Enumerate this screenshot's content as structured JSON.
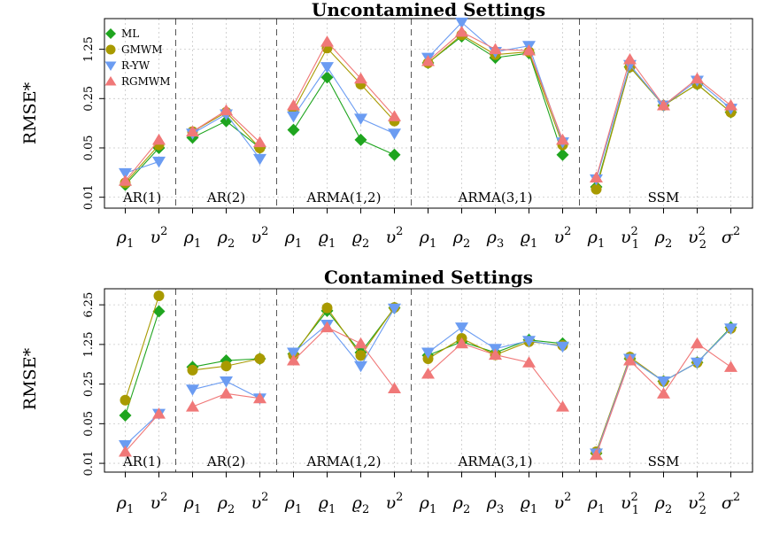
{
  "chart_data": {
    "type": "line",
    "ylabel": "RMSE*",
    "y_scale": "log",
    "y_ticks": [
      0.01,
      0.05,
      0.25,
      1.25,
      6.25
    ],
    "colors": {
      "ML": "#1fa51f",
      "GMWM": "#a89a00",
      "R-YW": "#6b9cf2",
      "RGMWM": "#f07878"
    },
    "markers": {
      "ML": "diamond",
      "GMWM": "circle",
      "R-YW": "triangle-down",
      "RGMWM": "triangle-up"
    },
    "legend_position": "top-left",
    "legend": [
      "ML",
      "GMWM",
      "R-YW",
      "RGMWM"
    ],
    "groups": [
      {
        "label": "AR(1)",
        "params": [
          {
            "base": "ρ",
            "sub": "1",
            "sup": ""
          },
          {
            "base": "υ",
            "sub": "",
            "sup": "2"
          }
        ]
      },
      {
        "label": "AR(2)",
        "params": [
          {
            "base": "ρ",
            "sub": "1",
            "sup": ""
          },
          {
            "base": "ρ",
            "sub": "2",
            "sup": ""
          },
          {
            "base": "υ",
            "sub": "",
            "sup": "2"
          }
        ]
      },
      {
        "label": "ARMA(1,2)",
        "params": [
          {
            "base": "ρ",
            "sub": "1",
            "sup": ""
          },
          {
            "base": "ϱ",
            "sub": "1",
            "sup": ""
          },
          {
            "base": "ϱ",
            "sub": "2",
            "sup": ""
          },
          {
            "base": "υ",
            "sub": "",
            "sup": "2"
          }
        ]
      },
      {
        "label": "ARMA(3,1)",
        "params": [
          {
            "base": "ρ",
            "sub": "1",
            "sup": ""
          },
          {
            "base": "ρ",
            "sub": "2",
            "sup": ""
          },
          {
            "base": "ρ",
            "sub": "3",
            "sup": ""
          },
          {
            "base": "ϱ",
            "sub": "1",
            "sup": ""
          },
          {
            "base": "υ",
            "sub": "",
            "sup": "2"
          }
        ]
      },
      {
        "label": "SSM",
        "params": [
          {
            "base": "ρ",
            "sub": "1",
            "sup": ""
          },
          {
            "base": "υ",
            "sub": "1",
            "sup": "2"
          },
          {
            "base": "ρ",
            "sub": "2",
            "sup": ""
          },
          {
            "base": "υ",
            "sub": "2",
            "sup": "2"
          },
          {
            "base": "σ",
            "sub": "",
            "sup": "2"
          }
        ]
      }
    ],
    "panels": [
      {
        "title": "Uncontamined Settings",
        "show_legend": true,
        "ylim": [
          0.007,
          3.4
        ],
        "series": [
          {
            "name": "ML",
            "groups": [
              [
                0.015,
                0.05
              ],
              [
                0.07,
                0.12,
                0.05
              ],
              [
                0.09,
                0.5,
                0.065,
                0.04
              ],
              [
                0.8,
                1.9,
                0.95,
                1.1,
                0.04
              ],
              [
                0.014,
                0.7,
                0.2,
                0.4,
                0.16
              ]
            ]
          },
          {
            "name": "GMWM",
            "groups": [
              [
                0.016,
                0.055
              ],
              [
                0.085,
                0.16,
                0.05
              ],
              [
                0.17,
                1.3,
                0.4,
                0.12
              ],
              [
                0.8,
                2.0,
                1.05,
                1.15,
                0.055
              ],
              [
                0.013,
                0.7,
                0.2,
                0.4,
                0.16
              ]
            ]
          },
          {
            "name": "R-YW",
            "groups": [
              [
                0.022,
                0.032
              ],
              [
                0.08,
                0.15,
                0.035
              ],
              [
                0.14,
                0.7,
                0.13,
                0.08
              ],
              [
                0.95,
                3.0,
                1.15,
                1.4,
                0.06
              ],
              [
                0.018,
                0.75,
                0.2,
                0.45,
                0.18
              ]
            ]
          },
          {
            "name": "RGMWM",
            "groups": [
              [
                0.017,
                0.065
              ],
              [
                0.085,
                0.17,
                0.06
              ],
              [
                0.2,
                1.6,
                0.48,
                0.14
              ],
              [
                0.85,
                2.2,
                1.25,
                1.2,
                0.065
              ],
              [
                0.019,
                0.9,
                0.2,
                0.48,
                0.2
              ]
            ]
          }
        ]
      },
      {
        "title": "Contamined Settings",
        "show_legend": false,
        "ylim": [
          0.007,
          12
        ],
        "series": [
          {
            "name": "ML",
            "groups": [
              [
                0.07,
                4.8
              ],
              [
                0.5,
                0.65,
                0.7
              ],
              [
                0.85,
                4.9,
                0.9,
                5.5
              ],
              [
                0.8,
                1.4,
                0.9,
                1.5,
                1.3
              ],
              [
                0.015,
                0.7,
                0.28,
                0.6,
                2.5
              ]
            ]
          },
          {
            "name": "GMWM",
            "groups": [
              [
                0.13,
                9.0
              ],
              [
                0.44,
                0.52,
                0.7
              ],
              [
                0.8,
                5.5,
                0.8,
                5.6
              ],
              [
                0.7,
                1.6,
                0.82,
                1.4,
                1.2
              ],
              [
                0.016,
                0.75,
                0.28,
                0.6,
                2.4
              ]
            ]
          },
          {
            "name": "R-YW",
            "groups": [
              [
                0.021,
                0.075
              ],
              [
                0.2,
                0.28,
                0.14
              ],
              [
                0.9,
                2.8,
                0.52,
                5.4
              ],
              [
                0.9,
                2.5,
                1.05,
                1.45,
                1.15
              ],
              [
                0.015,
                0.7,
                0.28,
                0.6,
                2.4
              ]
            ]
          },
          {
            "name": "RGMWM",
            "groups": [
              [
                0.016,
                0.075
              ],
              [
                0.1,
                0.17,
                0.14
              ],
              [
                0.65,
                2.5,
                1.3,
                0.21
              ],
              [
                0.38,
                1.3,
                0.82,
                0.6,
                0.1
              ],
              [
                0.014,
                0.65,
                0.17,
                1.3,
                0.5
              ]
            ]
          }
        ]
      }
    ]
  }
}
